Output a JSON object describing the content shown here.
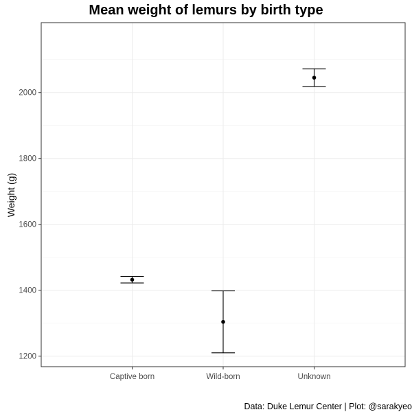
{
  "chart_data": {
    "type": "errorbar",
    "title": "Mean weight of lemurs by birth type",
    "xlabel": "",
    "ylabel": "Weight (g)",
    "caption": "Data: Duke Lemur Center | Plot: @sarakyeo",
    "categories": [
      "Captive born",
      "Wild-born",
      "Unknown"
    ],
    "means": [
      1432,
      1304,
      2045
    ],
    "lower": [
      1422,
      1210,
      2018
    ],
    "upper": [
      1442,
      1398,
      2072
    ],
    "ylim": [
      1168,
      2212
    ],
    "yticks": [
      1200,
      1400,
      1600,
      1800,
      2000
    ],
    "grid": true,
    "legend": "none",
    "colors": {
      "point": "#000000",
      "grid": "#ebebeb",
      "panel_border": "#333333"
    }
  }
}
